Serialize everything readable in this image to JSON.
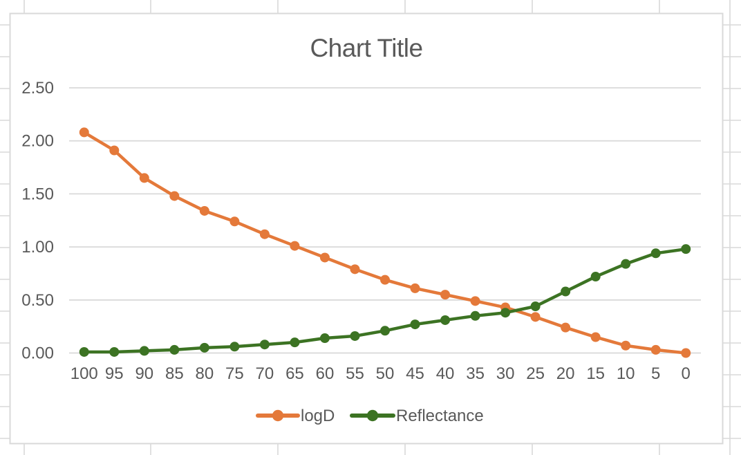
{
  "sheet": {
    "background_color": "#ffffff",
    "grid_line_color": "#d9d9d9"
  },
  "chart": {
    "frame_fill": "#ffffff",
    "frame_border_color": "#d9d9d9",
    "gridline_color": "#d9d9d9",
    "text_color": "#595959",
    "title_color": "#595959"
  },
  "chart_data": {
    "type": "line",
    "title": "Chart Title",
    "xlabel": "",
    "ylabel": "",
    "categories": [
      100,
      95,
      90,
      85,
      80,
      75,
      70,
      65,
      60,
      55,
      50,
      45,
      40,
      35,
      30,
      25,
      20,
      15,
      10,
      5,
      0
    ],
    "series": [
      {
        "name": "logD",
        "color": "#e4793a",
        "values": [
          2.08,
          1.91,
          1.65,
          1.48,
          1.34,
          1.24,
          1.12,
          1.01,
          0.9,
          0.79,
          0.69,
          0.61,
          0.55,
          0.49,
          0.43,
          0.34,
          0.24,
          0.15,
          0.07,
          0.03,
          0.0
        ]
      },
      {
        "name": "Reflectance",
        "color": "#3c7323",
        "values": [
          0.01,
          0.01,
          0.02,
          0.03,
          0.05,
          0.06,
          0.08,
          0.1,
          0.14,
          0.16,
          0.21,
          0.27,
          0.31,
          0.35,
          0.38,
          0.44,
          0.58,
          0.72,
          0.84,
          0.94,
          0.98
        ]
      }
    ],
    "ylim": [
      0,
      2.5
    ],
    "ytick_step": 0.5,
    "y_tick_labels": [
      "0.00",
      "0.50",
      "1.00",
      "1.50",
      "2.00",
      "2.50"
    ],
    "grid": true,
    "legend_position": "bottom",
    "marker": "circle"
  }
}
